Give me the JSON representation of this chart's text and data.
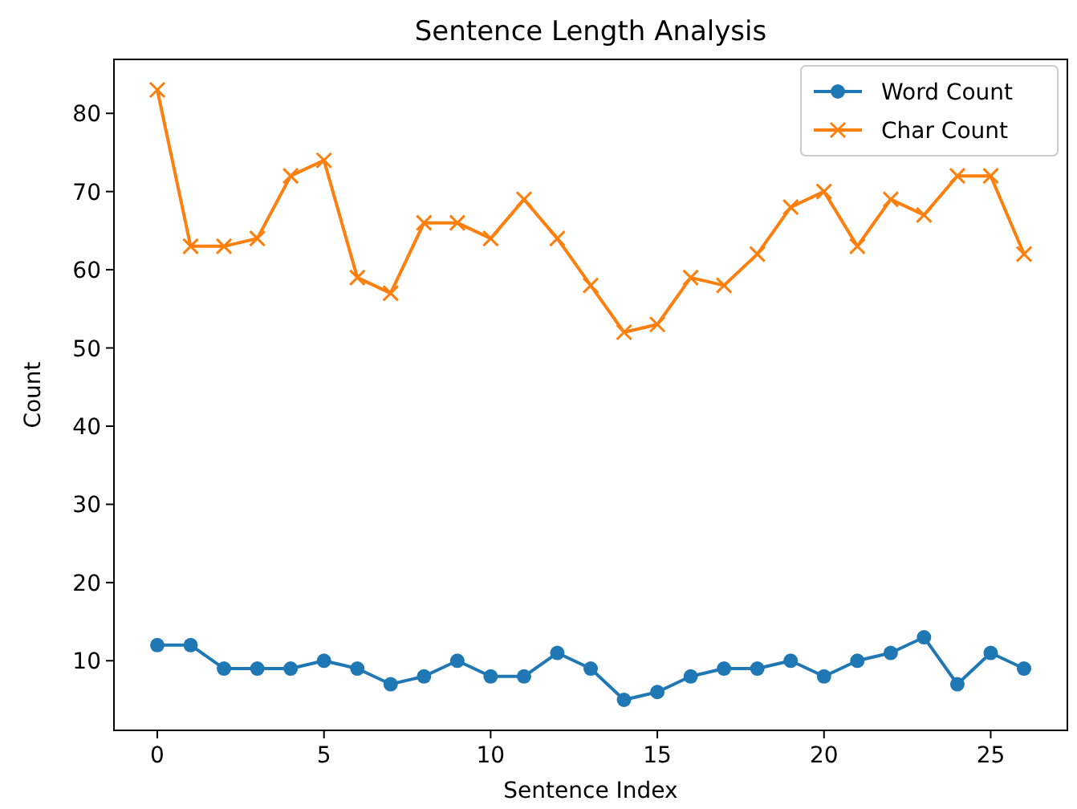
{
  "chart_data": {
    "type": "line",
    "title": "Sentence Length Analysis",
    "xlabel": "Sentence Index",
    "ylabel": "Count",
    "x": [
      0,
      1,
      2,
      3,
      4,
      5,
      6,
      7,
      8,
      9,
      10,
      11,
      12,
      13,
      14,
      15,
      16,
      17,
      18,
      19,
      20,
      21,
      22,
      23,
      24,
      25,
      26
    ],
    "series": [
      {
        "name": "Word Count",
        "color": "#1f77b4",
        "marker": "circle",
        "values": [
          12,
          12,
          9,
          9,
          9,
          10,
          9,
          7,
          8,
          10,
          8,
          8,
          11,
          9,
          5,
          6,
          8,
          9,
          9,
          10,
          8,
          10,
          11,
          13,
          7,
          11,
          9
        ]
      },
      {
        "name": "Char Count",
        "color": "#ff7f0e",
        "marker": "cross",
        "values": [
          83,
          63,
          63,
          64,
          72,
          74,
          59,
          57,
          66,
          66,
          64,
          69,
          64,
          58,
          52,
          53,
          59,
          58,
          62,
          68,
          70,
          63,
          69,
          67,
          72,
          72,
          62
        ]
      }
    ],
    "xlim": [
      -1.3,
      27.3
    ],
    "xticks": [
      0,
      5,
      10,
      15,
      20,
      25
    ],
    "ylim": [
      1.1,
      86.9
    ],
    "yticks": [
      10,
      20,
      30,
      40,
      50,
      60,
      70,
      80
    ],
    "legend": "top right",
    "grid": false,
    "line_style": "solid"
  }
}
